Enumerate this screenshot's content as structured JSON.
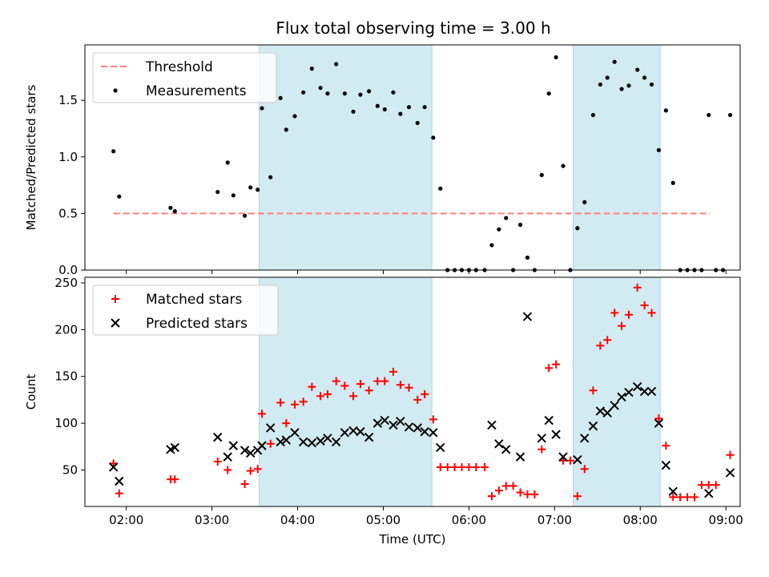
{
  "title": "Flux total observing time = 3.00 h",
  "colors": {
    "threshold": "#ff7f7f",
    "measurement": "#000000",
    "matched": "#ff0000",
    "predicted": "#000000",
    "shade": "#add8e6"
  },
  "chart_data": [
    {
      "type": "scatter",
      "title": "Flux total observing time = 3.00 h",
      "xlabel": "",
      "ylabel": "Matched/Predicted stars",
      "x_ticks": [
        "02:00",
        "03:00",
        "04:00",
        "05:00",
        "06:00",
        "07:00",
        "08:00",
        "09:00"
      ],
      "y_ticks": [
        "0.0",
        "0.5",
        "1.0",
        "1.5"
      ],
      "xlim": [
        "01:31",
        "09:10"
      ],
      "ylim": [
        0,
        1.99
      ],
      "shaded_intervals": [
        [
          "03:33",
          "05:34"
        ],
        [
          "07:13",
          "08:14"
        ]
      ],
      "legend": {
        "position": "upper-left",
        "entries": [
          "Threshold",
          "Measurements"
        ]
      },
      "series": [
        {
          "name": "Threshold",
          "kind": "dashed-line",
          "points": [
            [
              "01:51",
              0.5
            ],
            [
              "08:49",
              0.5
            ]
          ]
        },
        {
          "name": "Measurements",
          "kind": "dot",
          "points": [
            [
              "01:51",
              1.05
            ],
            [
              "01:55",
              0.65
            ],
            [
              "02:31",
              0.55
            ],
            [
              "02:34",
              0.52
            ],
            [
              "03:04",
              0.69
            ],
            [
              "03:11",
              0.95
            ],
            [
              "03:15",
              0.66
            ],
            [
              "03:23",
              0.48
            ],
            [
              "03:27",
              0.73
            ],
            [
              "03:32",
              0.71
            ],
            [
              "03:35",
              1.43
            ],
            [
              "03:41",
              0.82
            ],
            [
              "03:48",
              1.52
            ],
            [
              "03:52",
              1.24
            ],
            [
              "03:58",
              1.36
            ],
            [
              "04:04",
              1.57
            ],
            [
              "04:10",
              1.78
            ],
            [
              "04:16",
              1.61
            ],
            [
              "04:21",
              1.56
            ],
            [
              "04:27",
              1.82
            ],
            [
              "04:33",
              1.56
            ],
            [
              "04:39",
              1.4
            ],
            [
              "04:44",
              1.55
            ],
            [
              "04:50",
              1.58
            ],
            [
              "04:56",
              1.45
            ],
            [
              "05:01",
              1.42
            ],
            [
              "05:07",
              1.57
            ],
            [
              "05:12",
              1.38
            ],
            [
              "05:18",
              1.44
            ],
            [
              "05:24",
              1.3
            ],
            [
              "05:29",
              1.44
            ],
            [
              "05:35",
              1.17
            ],
            [
              "05:40",
              0.72
            ],
            [
              "05:45",
              0.0
            ],
            [
              "05:50",
              0.0
            ],
            [
              "05:55",
              0.0
            ],
            [
              "06:00",
              0.0
            ],
            [
              "06:05",
              0.0
            ],
            [
              "06:11",
              0.0
            ],
            [
              "06:16",
              0.22
            ],
            [
              "06:21",
              0.36
            ],
            [
              "06:26",
              0.46
            ],
            [
              "06:31",
              0.0
            ],
            [
              "06:36",
              0.4
            ],
            [
              "06:41",
              0.11
            ],
            [
              "06:46",
              0.0
            ],
            [
              "06:51",
              0.84
            ],
            [
              "06:56",
              1.56
            ],
            [
              "07:01",
              1.88
            ],
            [
              "07:06",
              0.92
            ],
            [
              "07:11",
              0.0
            ],
            [
              "07:16",
              0.37
            ],
            [
              "07:21",
              0.6
            ],
            [
              "07:27",
              1.37
            ],
            [
              "07:32",
              1.64
            ],
            [
              "07:37",
              1.7
            ],
            [
              "07:42",
              1.84
            ],
            [
              "07:47",
              1.6
            ],
            [
              "07:52",
              1.63
            ],
            [
              "07:58",
              1.77
            ],
            [
              "08:03",
              1.7
            ],
            [
              "08:08",
              1.64
            ],
            [
              "08:13",
              1.06
            ],
            [
              "08:18",
              1.41
            ],
            [
              "08:23",
              0.77
            ],
            [
              "08:28",
              0.0
            ],
            [
              "08:33",
              0.0
            ],
            [
              "08:38",
              0.0
            ],
            [
              "08:43",
              0.0
            ],
            [
              "08:48",
              1.37
            ],
            [
              "08:53",
              0.0
            ],
            [
              "08:58",
              0.0
            ],
            [
              "09:03",
              1.37
            ]
          ]
        }
      ]
    },
    {
      "type": "scatter",
      "title": "",
      "xlabel": "Time (UTC)",
      "ylabel": "Count",
      "x_ticks": [
        "02:00",
        "03:00",
        "04:00",
        "05:00",
        "06:00",
        "07:00",
        "08:00",
        "09:00"
      ],
      "y_ticks": [
        "50",
        "100",
        "150",
        "200",
        "250"
      ],
      "xlim": [
        "01:31",
        "09:10"
      ],
      "ylim": [
        11,
        256
      ],
      "shaded_intervals": [
        [
          "03:33",
          "05:34"
        ],
        [
          "07:13",
          "08:14"
        ]
      ],
      "legend": {
        "position": "upper-left",
        "entries": [
          "Matched stars",
          "Predicted stars"
        ]
      },
      "series": [
        {
          "name": "Matched stars",
          "kind": "plus",
          "points": [
            [
              "01:51",
              57
            ],
            [
              "01:55",
              25
            ],
            [
              "02:31",
              40
            ],
            [
              "02:34",
              40
            ],
            [
              "03:04",
              59
            ],
            [
              "03:11",
              50
            ],
            [
              "03:23",
              35
            ],
            [
              "03:27",
              49
            ],
            [
              "03:32",
              51
            ],
            [
              "03:35",
              110
            ],
            [
              "03:41",
              78
            ],
            [
              "03:48",
              122
            ],
            [
              "03:52",
              100
            ],
            [
              "03:58",
              120
            ],
            [
              "04:04",
              123
            ],
            [
              "04:10",
              139
            ],
            [
              "04:16",
              129
            ],
            [
              "04:21",
              131
            ],
            [
              "04:27",
              145
            ],
            [
              "04:33",
              140
            ],
            [
              "04:39",
              129
            ],
            [
              "04:44",
              142
            ],
            [
              "04:50",
              135
            ],
            [
              "04:56",
              145
            ],
            [
              "05:01",
              145
            ],
            [
              "05:07",
              155
            ],
            [
              "05:12",
              141
            ],
            [
              "05:18",
              138
            ],
            [
              "05:24",
              125
            ],
            [
              "05:29",
              131
            ],
            [
              "05:35",
              104
            ],
            [
              "05:40",
              53
            ],
            [
              "05:45",
              53
            ],
            [
              "05:50",
              53
            ],
            [
              "05:55",
              53
            ],
            [
              "06:00",
              53
            ],
            [
              "06:05",
              53
            ],
            [
              "06:11",
              53
            ],
            [
              "06:16",
              22
            ],
            [
              "06:21",
              28
            ],
            [
              "06:26",
              33
            ],
            [
              "06:31",
              33
            ],
            [
              "06:36",
              26
            ],
            [
              "06:41",
              24
            ],
            [
              "06:46",
              24
            ],
            [
              "06:51",
              72
            ],
            [
              "06:56",
              159
            ],
            [
              "07:01",
              163
            ],
            [
              "07:06",
              60
            ],
            [
              "07:11",
              60
            ],
            [
              "07:16",
              22
            ],
            [
              "07:21",
              51
            ],
            [
              "07:27",
              135
            ],
            [
              "07:32",
              183
            ],
            [
              "07:37",
              189
            ],
            [
              "07:42",
              218
            ],
            [
              "07:47",
              204
            ],
            [
              "07:52",
              216
            ],
            [
              "07:58",
              245
            ],
            [
              "08:03",
              226
            ],
            [
              "08:08",
              218
            ],
            [
              "08:13",
              105
            ],
            [
              "08:18",
              76
            ],
            [
              "08:23",
              21
            ],
            [
              "08:28",
              21
            ],
            [
              "08:33",
              21
            ],
            [
              "08:38",
              21
            ],
            [
              "08:43",
              34
            ],
            [
              "08:48",
              34
            ],
            [
              "08:53",
              34
            ],
            [
              "09:03",
              66
            ]
          ]
        },
        {
          "name": "Predicted stars",
          "kind": "x",
          "points": [
            [
              "01:51",
              53
            ],
            [
              "01:55",
              38
            ],
            [
              "02:31",
              72
            ],
            [
              "02:34",
              74
            ],
            [
              "03:04",
              85
            ],
            [
              "03:11",
              64
            ],
            [
              "03:15",
              76
            ],
            [
              "03:23",
              71
            ],
            [
              "03:27",
              68
            ],
            [
              "03:32",
              71
            ],
            [
              "03:35",
              76
            ],
            [
              "03:41",
              95
            ],
            [
              "03:48",
              80
            ],
            [
              "03:52",
              82
            ],
            [
              "03:58",
              90
            ],
            [
              "04:04",
              80
            ],
            [
              "04:10",
              79
            ],
            [
              "04:16",
              81
            ],
            [
              "04:21",
              84
            ],
            [
              "04:27",
              80
            ],
            [
              "04:33",
              90
            ],
            [
              "04:39",
              92
            ],
            [
              "04:44",
              91
            ],
            [
              "04:50",
              85
            ],
            [
              "04:56",
              100
            ],
            [
              "05:01",
              103
            ],
            [
              "05:07",
              98
            ],
            [
              "05:12",
              102
            ],
            [
              "05:18",
              96
            ],
            [
              "05:24",
              95
            ],
            [
              "05:29",
              91
            ],
            [
              "05:35",
              90
            ],
            [
              "05:40",
              74
            ],
            [
              "06:16",
              98
            ],
            [
              "06:21",
              78
            ],
            [
              "06:26",
              72
            ],
            [
              "06:36",
              64
            ],
            [
              "06:41",
              214
            ],
            [
              "06:51",
              84
            ],
            [
              "06:56",
              103
            ],
            [
              "07:01",
              88
            ],
            [
              "07:06",
              64
            ],
            [
              "07:16",
              61
            ],
            [
              "07:21",
              84
            ],
            [
              "07:27",
              97
            ],
            [
              "07:32",
              113
            ],
            [
              "07:37",
              111
            ],
            [
              "07:42",
              119
            ],
            [
              "07:47",
              128
            ],
            [
              "07:52",
              133
            ],
            [
              "07:58",
              139
            ],
            [
              "08:03",
              134
            ],
            [
              "08:08",
              134
            ],
            [
              "08:13",
              100
            ],
            [
              "08:18",
              55
            ],
            [
              "08:23",
              27
            ],
            [
              "08:48",
              25
            ],
            [
              "09:03",
              47
            ]
          ]
        }
      ]
    }
  ]
}
